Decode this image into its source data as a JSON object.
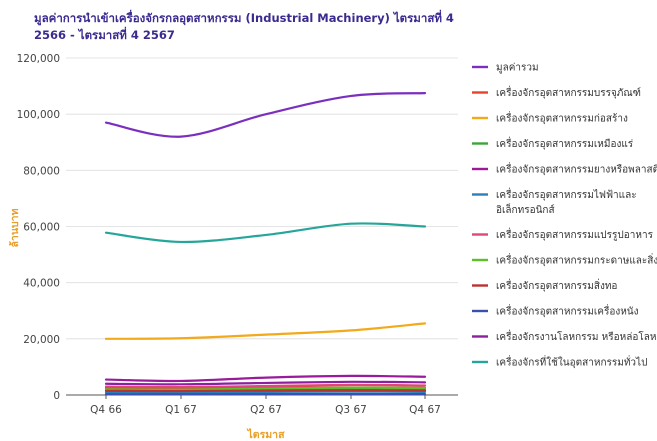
{
  "chart_data": {
    "type": "line",
    "title": "มูลค่าการนำเข้าเครื่องจักรกลอุตสาหกรรม (Industrial Machinery) ไตรมาสที่ 4 2566 - ไตรมาสที่ 4 2567",
    "xlabel": "ไตรมาส",
    "ylabel": "ล้านบาท",
    "categories": [
      "Q4 66",
      "Q1 67",
      "Q2 67",
      "Q3 67",
      "Q4 67"
    ],
    "ylim": [
      0,
      120000
    ],
    "yticks": [
      "0",
      "20,000",
      "40,000",
      "60,000",
      "80,000",
      "100,000",
      "120,000"
    ],
    "ytick_values": [
      0,
      20000,
      40000,
      60000,
      80000,
      100000,
      120000
    ],
    "grid": true,
    "legend_position": "right",
    "series": [
      {
        "name": "มูลค่ารวม",
        "color": "#7b2fbf",
        "values": [
          97000,
          92000,
          100000,
          106500,
          107500
        ]
      },
      {
        "name": "เครื่องจักรอุตสาหกรรมบรรจุภัณฑ์",
        "color": "#e8432a",
        "values": [
          2500,
          2300,
          2600,
          2700,
          2600
        ]
      },
      {
        "name": "เครื่องจักรอุตสาหกรรมก่อสร้าง",
        "color": "#f2a91a",
        "values": [
          20000,
          20200,
          21500,
          23000,
          25500
        ]
      },
      {
        "name": "เครื่องจักรอุตสาหกรรมเหมืองแร่",
        "color": "#3aa63a",
        "values": [
          1800,
          1700,
          2000,
          2200,
          2100
        ]
      },
      {
        "name": "เครื่องจักรอุตสาหกรรมยางหรือพลาสติก",
        "color": "#9a1a9a",
        "values": [
          5500,
          5000,
          6200,
          6800,
          6500
        ]
      },
      {
        "name": "เครื่องจักรอุตสาหกรรมไฟฟ้าและอิเล็กทรอนิกส์",
        "color": "#2a7fb8",
        "values": [
          1000,
          900,
          1100,
          1200,
          1100
        ]
      },
      {
        "name": "เครื่องจักรอุตสาหกรรมแปรรูปอาหาร",
        "color": "#e0457b",
        "values": [
          3000,
          2800,
          3200,
          3600,
          3400
        ]
      },
      {
        "name": "เครื่องจักรอุตสาหกรรมกระดาษและสิ่ง...",
        "color": "#5cc02a",
        "values": [
          2000,
          1900,
          2300,
          2600,
          2500
        ]
      },
      {
        "name": "เครื่องจักรอุตสาหกรรมสิ่งทอ",
        "color": "#b83232",
        "values": [
          1500,
          1400,
          1600,
          1700,
          1600
        ]
      },
      {
        "name": "เครื่องจักรอุตสาหกรรมเครื่องหนัง",
        "color": "#3a4fb0",
        "values": [
          300,
          280,
          320,
          340,
          330
        ]
      },
      {
        "name": "เครื่องจักรงานโลหกรรม หรือหล่อโลหะ",
        "color": "#8e1f9e",
        "values": [
          4000,
          3800,
          4300,
          4700,
          4500
        ]
      },
      {
        "name": "เครื่องจักรที่ใช้ในอุตสาหกรรมทั่วไป",
        "color": "#26a69a",
        "values": [
          57800,
          54500,
          57000,
          61000,
          60000
        ]
      }
    ]
  }
}
